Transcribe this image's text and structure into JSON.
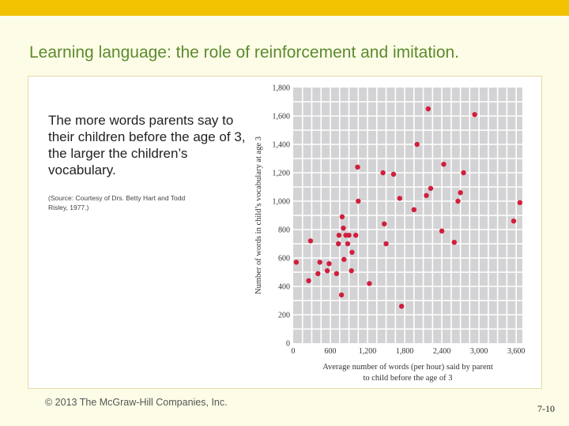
{
  "slide": {
    "title": "Learning language: the role of reinforcement and imitation.",
    "lead_text": "The more words parents say to their children before the age of 3, the larger the children’s vocabulary.",
    "source_text": "(Source: Courtesy of Drs. Betty Hart and Todd Risley, 1977.)",
    "copyright": "© 2013 The McGraw-Hill Companies, Inc.",
    "page_number": "7-10"
  },
  "colors": {
    "top_bar": "#f2c200",
    "title": "#5c8a2e",
    "plot_background": "#d3d3d5",
    "grid": "#ffffff",
    "point": "#d01f3c"
  },
  "chart_data": {
    "type": "scatter",
    "xlabel": "Average number of words (per hour) said by parent",
    "xlabel_line2": "to child before the age of 3",
    "ylabel": "Number of words in child’s vocabulary at age 3",
    "xlim": [
      0,
      3700
    ],
    "ylim": [
      0,
      1800
    ],
    "x_ticks": [
      0,
      600,
      1200,
      1800,
      2400,
      3000,
      3600
    ],
    "x_tick_labels": [
      "0",
      "600",
      "1,200",
      "1,800",
      "2,400",
      "3,000",
      "3,600"
    ],
    "y_ticks": [
      0,
      200,
      400,
      600,
      800,
      1000,
      1200,
      1400,
      1600,
      1800
    ],
    "y_tick_labels": [
      "0",
      "200",
      "400",
      "600",
      "800",
      "1,000",
      "1,200",
      "1,400",
      "1,600",
      "1,800"
    ],
    "grid": true,
    "points": [
      {
        "x": 50,
        "y": 570
      },
      {
        "x": 250,
        "y": 440
      },
      {
        "x": 280,
        "y": 720
      },
      {
        "x": 400,
        "y": 490
      },
      {
        "x": 430,
        "y": 570
      },
      {
        "x": 550,
        "y": 510
      },
      {
        "x": 580,
        "y": 560
      },
      {
        "x": 700,
        "y": 490
      },
      {
        "x": 730,
        "y": 700
      },
      {
        "x": 740,
        "y": 760
      },
      {
        "x": 780,
        "y": 340
      },
      {
        "x": 790,
        "y": 890
      },
      {
        "x": 810,
        "y": 810
      },
      {
        "x": 820,
        "y": 590
      },
      {
        "x": 850,
        "y": 760
      },
      {
        "x": 880,
        "y": 700
      },
      {
        "x": 900,
        "y": 760
      },
      {
        "x": 940,
        "y": 510
      },
      {
        "x": 950,
        "y": 640
      },
      {
        "x": 1010,
        "y": 760
      },
      {
        "x": 1040,
        "y": 1240
      },
      {
        "x": 1050,
        "y": 1000
      },
      {
        "x": 1230,
        "y": 420
      },
      {
        "x": 1450,
        "y": 1200
      },
      {
        "x": 1470,
        "y": 840
      },
      {
        "x": 1500,
        "y": 700
      },
      {
        "x": 1620,
        "y": 1190
      },
      {
        "x": 1720,
        "y": 1020
      },
      {
        "x": 1750,
        "y": 260
      },
      {
        "x": 1950,
        "y": 940
      },
      {
        "x": 2000,
        "y": 1400
      },
      {
        "x": 2150,
        "y": 1040
      },
      {
        "x": 2180,
        "y": 1650
      },
      {
        "x": 2220,
        "y": 1090
      },
      {
        "x": 2400,
        "y": 790
      },
      {
        "x": 2430,
        "y": 1260
      },
      {
        "x": 2600,
        "y": 710
      },
      {
        "x": 2660,
        "y": 1000
      },
      {
        "x": 2700,
        "y": 1060
      },
      {
        "x": 2750,
        "y": 1200
      },
      {
        "x": 2930,
        "y": 1610
      },
      {
        "x": 3560,
        "y": 860
      },
      {
        "x": 3660,
        "y": 990
      }
    ]
  }
}
